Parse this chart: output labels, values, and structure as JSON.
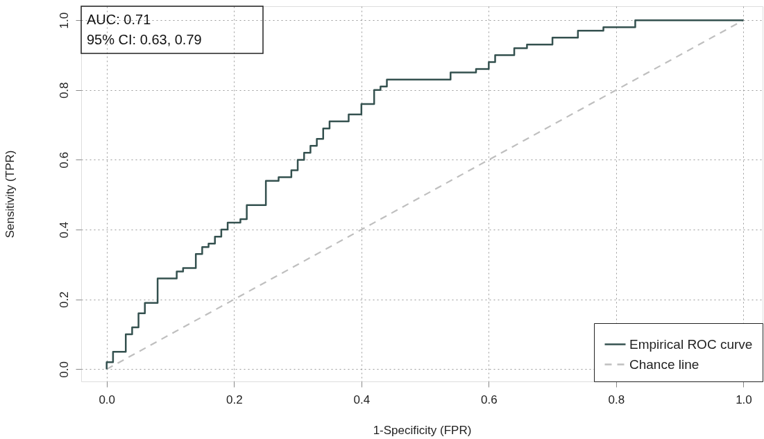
{
  "chart_data": {
    "type": "step",
    "xlabel": "1-Specificity (FPR)",
    "ylabel": "Sensitivity (TPR)",
    "annotations": [
      "AUC: 0.71",
      "95% CI: 0.63, 0.79"
    ],
    "xlim": [
      -0.04,
      1.03
    ],
    "ylim": [
      -0.035,
      1.04
    ],
    "xticks": [
      {
        "value": 0,
        "label": "0.0"
      },
      0.2,
      0.4,
      0.6,
      0.8,
      {
        "value": 1,
        "label": "1.0"
      }
    ],
    "yticks": [
      {
        "value": 0,
        "label": "0.0"
      },
      0.2,
      0.4,
      0.6,
      0.8,
      {
        "value": 1,
        "label": "1.0"
      }
    ],
    "grid": true,
    "legend": "bottom right",
    "series": [
      {
        "name": "Empirical ROC curve",
        "type": "step",
        "color": "#34514f",
        "line_style": "solid",
        "x": [
          0,
          0,
          0.01,
          0.03,
          0.03,
          0.04,
          0.05,
          0.06,
          0.08,
          0.11,
          0.12,
          0.14,
          0.15,
          0.16,
          0.17,
          0.18,
          0.19,
          0.21,
          0.22,
          0.22,
          0.25,
          0.27,
          0.29,
          0.3,
          0.3,
          0.31,
          0.32,
          0.33,
          0.34,
          0.35,
          0.38,
          0.4,
          0.4,
          0.42,
          0.42,
          0.43,
          0.44,
          0.54,
          0.58,
          0.6,
          0.61,
          0.64,
          0.66,
          0.7,
          0.74,
          0.78,
          0.83,
          1.0
        ],
        "values": [
          0,
          0.02,
          0.05,
          0.09,
          0.1,
          0.12,
          0.16,
          0.19,
          0.26,
          0.28,
          0.29,
          0.33,
          0.35,
          0.36,
          0.38,
          0.4,
          0.42,
          0.43,
          0.45,
          0.47,
          0.54,
          0.55,
          0.57,
          0.59,
          0.6,
          0.62,
          0.64,
          0.66,
          0.69,
          0.71,
          0.73,
          0.74,
          0.76,
          0.78,
          0.8,
          0.81,
          0.83,
          0.85,
          0.86,
          0.88,
          0.9,
          0.92,
          0.93,
          0.95,
          0.97,
          0.98,
          1.0,
          1.0
        ]
      },
      {
        "name": "Chance line",
        "type": "line",
        "color": "#bfbfbf",
        "line_style": "dashed",
        "x": [
          0,
          1
        ],
        "values": [
          0,
          1
        ]
      }
    ]
  }
}
